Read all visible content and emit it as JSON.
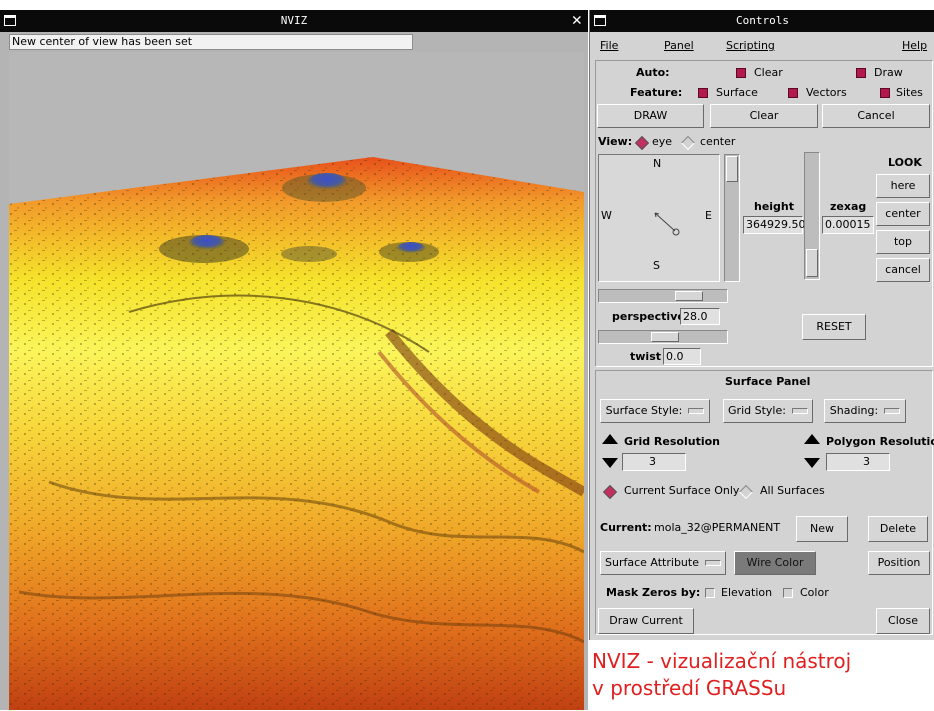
{
  "nviz_window": {
    "title": "NVIZ",
    "status": "New center of view has been set",
    "close_glyph": "✕"
  },
  "controls_window": {
    "title": "Controls",
    "menu": {
      "file": "File",
      "panel": "Panel",
      "scripting": "Scripting",
      "help": "Help"
    },
    "auto_label": "Auto:",
    "clear_check": "Clear",
    "draw_check": "Draw",
    "feature_label": "Feature:",
    "surface_check": "Surface",
    "vectors_check": "Vectors",
    "sites_check": "Sites",
    "draw_button": "DRAW",
    "clear_button": "Clear",
    "cancel_button": "Cancel",
    "view_label": "View:",
    "view_eye": "eye",
    "view_center": "center",
    "compass": {
      "n": "N",
      "s": "S",
      "e": "E",
      "w": "W"
    },
    "height_label": "height",
    "height_value": "364929.50",
    "zexag_label": "zexag",
    "zexag_value": "0.00015",
    "look_label": "LOOK",
    "look_here": "here",
    "look_center": "center",
    "look_top": "top",
    "look_cancel": "cancel",
    "perspective_label": "perspective",
    "perspective_value": "28.0",
    "twist_label": "twist",
    "twist_value": "0.0",
    "reset_button": "RESET",
    "surface_panel_title": "Surface Panel",
    "surface_style": "Surface Style:",
    "grid_style": "Grid Style:",
    "shading": "Shading:",
    "grid_resolution_label": "Grid Resolution",
    "grid_resolution_value": "3",
    "polygon_resolution_label": "Polygon  Resolution",
    "polygon_resolution_value": "3",
    "current_surface_only": "Current Surface Only",
    "all_surfaces": "All Surfaces",
    "current_label": "Current:",
    "current_value": "mola_32@PERMANENT",
    "new_button": "New",
    "delete_button": "Delete",
    "surface_attribute": "Surface Attribute",
    "wire_color_button": "Wire Color",
    "position_button": "Position",
    "mask_zeros_label": "Mask Zeros by:",
    "mask_elevation": "Elevation",
    "mask_color": "Color",
    "draw_current_button": "Draw Current",
    "close_button": "Close"
  },
  "caption": {
    "line1": "NVIZ - vizualizační nástroj",
    "line2": "v prostředí GRASSu"
  },
  "colors": {
    "titlebar": "#0a0a0a",
    "window_bg": "#d3d3d3",
    "check_on": "#b3194d",
    "caption": "#e02020",
    "terrain_high": "#ffff30",
    "terrain_low": "#c04000"
  }
}
